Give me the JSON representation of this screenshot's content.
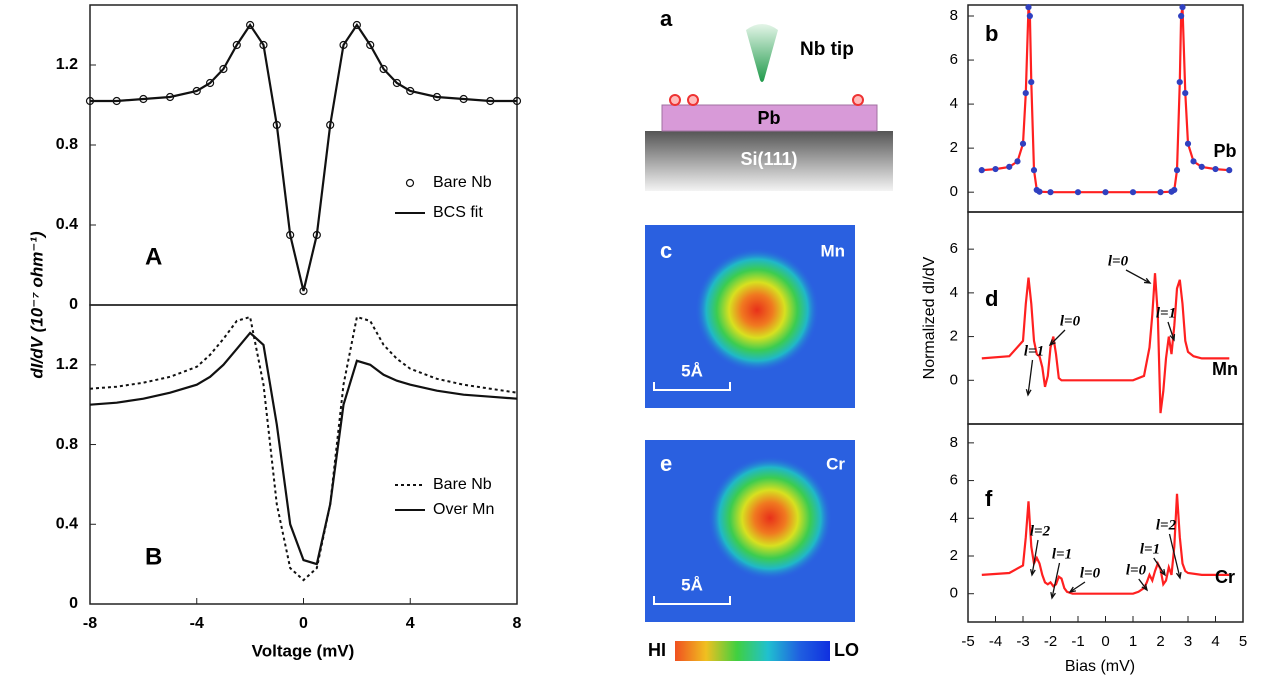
{
  "chart_data": [
    {
      "type": "line",
      "label": "A",
      "ylabel": "dI/dV (10⁻⁷ ohm⁻¹)",
      "x": [
        -8,
        -7,
        -6,
        -5,
        -4,
        -3.5,
        -3,
        -2.5,
        -2,
        -1.5,
        -1,
        -0.5,
        0,
        0.5,
        1,
        1.5,
        2,
        2.5,
        3,
        3.5,
        4,
        5,
        6,
        7,
        8
      ],
      "series": [
        {
          "name": "Bare Nb",
          "style": "circles",
          "color": "#111111",
          "values": [
            1.02,
            1.02,
            1.03,
            1.04,
            1.07,
            1.11,
            1.18,
            1.3,
            1.4,
            1.3,
            0.9,
            0.35,
            0.07,
            0.35,
            0.9,
            1.3,
            1.4,
            1.3,
            1.18,
            1.11,
            1.07,
            1.04,
            1.03,
            1.02,
            1.02
          ]
        },
        {
          "name": "BCS fit",
          "style": "line",
          "color": "#111111",
          "values": [
            1.02,
            1.02,
            1.03,
            1.04,
            1.07,
            1.11,
            1.18,
            1.3,
            1.4,
            1.3,
            0.9,
            0.35,
            0.07,
            0.35,
            0.9,
            1.3,
            1.4,
            1.3,
            1.18,
            1.11,
            1.07,
            1.04,
            1.03,
            1.02,
            1.02
          ]
        }
      ],
      "xlim": [
        -8,
        8
      ],
      "ylim": [
        0,
        1.5
      ],
      "yticks": [
        0,
        0.4,
        0.8,
        1.2
      ]
    },
    {
      "type": "line",
      "label": "B",
      "xlabel": "Voltage (mV)",
      "x": [
        -8,
        -7,
        -6,
        -5,
        -4,
        -3.5,
        -3,
        -2.5,
        -2,
        -1.5,
        -1,
        -0.5,
        0,
        0.5,
        1,
        1.5,
        2,
        2.5,
        3,
        3.5,
        4,
        5,
        6,
        7,
        8
      ],
      "series": [
        {
          "name": "Bare Nb",
          "style": "dotted",
          "color": "#111111",
          "values": [
            1.08,
            1.09,
            1.11,
            1.14,
            1.19,
            1.25,
            1.33,
            1.42,
            1.44,
            1.1,
            0.5,
            0.18,
            0.12,
            0.18,
            0.5,
            1.1,
            1.44,
            1.42,
            1.3,
            1.23,
            1.18,
            1.13,
            1.1,
            1.08,
            1.06
          ]
        },
        {
          "name": "Over Mn",
          "style": "line",
          "color": "#111111",
          "values": [
            1.0,
            1.01,
            1.03,
            1.06,
            1.1,
            1.14,
            1.2,
            1.28,
            1.36,
            1.3,
            0.9,
            0.4,
            0.22,
            0.2,
            0.5,
            1.0,
            1.22,
            1.2,
            1.15,
            1.12,
            1.1,
            1.07,
            1.05,
            1.04,
            1.03
          ]
        }
      ],
      "xlim": [
        -8,
        8
      ],
      "ylim": [
        0,
        1.5
      ],
      "xticks": [
        -8,
        -4,
        0,
        4,
        8
      ],
      "yticks": [
        0,
        0.4,
        0.8,
        1.2
      ]
    },
    {
      "type": "line",
      "label": "b",
      "tag": "Pb",
      "x": [
        -4.5,
        -4,
        -3.5,
        -3.2,
        -3,
        -2.9,
        -2.8,
        -2.75,
        -2.7,
        -2.6,
        -2.5,
        -2.4,
        -2,
        -1,
        0,
        1,
        2,
        2.4,
        2.5,
        2.6,
        2.7,
        2.75,
        2.8,
        2.9,
        3,
        3.2,
        3.5,
        4,
        4.5
      ],
      "series": [
        {
          "style": "line",
          "color": "#ff2020",
          "values": [
            1,
            1.05,
            1.15,
            1.4,
            2.2,
            4.5,
            8.4,
            8.0,
            5,
            1,
            0.1,
            0.02,
            0,
            0,
            0,
            0,
            0,
            0.02,
            0.1,
            1,
            5,
            8.0,
            8.4,
            4.5,
            2.2,
            1.4,
            1.15,
            1.05,
            1
          ]
        },
        {
          "style": "dots",
          "color": "#3040c0",
          "values": [
            1,
            1.05,
            1.15,
            1.4,
            2.2,
            4.5,
            8.4,
            8.0,
            5,
            1,
            0.1,
            0.02,
            0,
            0,
            0,
            0,
            0,
            0.02,
            0.1,
            1,
            5,
            8.0,
            8.4,
            4.5,
            2.2,
            1.4,
            1.15,
            1.05,
            1
          ]
        }
      ],
      "xlim": [
        -5,
        5
      ],
      "ylim": [
        -0.9,
        8.5
      ],
      "yticks": [
        0,
        2,
        4,
        6,
        8
      ]
    },
    {
      "type": "line",
      "label": "d",
      "tag": "Mn",
      "ylabel": "Normalized dI/dV",
      "annotations": [
        "l=1",
        "l=0",
        "l=0",
        "l=1"
      ],
      "x": [
        -4.5,
        -3.5,
        -3,
        -2.9,
        -2.8,
        -2.7,
        -2.6,
        -2.5,
        -2.4,
        -2.3,
        -2.2,
        -2.1,
        -2,
        -1.9,
        -1.8,
        -1.7,
        -1.6,
        -1.5,
        -1,
        0,
        1,
        1.4,
        1.6,
        1.7,
        1.8,
        1.9,
        2,
        2.1,
        2.2,
        2.3,
        2.4,
        2.5,
        2.6,
        2.7,
        2.8,
        2.9,
        3,
        3.2,
        3.5,
        4.5
      ],
      "series": [
        {
          "style": "line",
          "color": "#ff2020",
          "values": [
            1,
            1.1,
            1.8,
            3.5,
            4.7,
            3.5,
            1.8,
            1.2,
            1.1,
            0.6,
            -0.3,
            0.2,
            1.5,
            2.0,
            1.2,
            0.1,
            0,
            0,
            0,
            0,
            0,
            0.2,
            1.5,
            3,
            4.9,
            3,
            -1.5,
            -0.5,
            1,
            2.0,
            1.2,
            2.5,
            4.2,
            4.6,
            3.5,
            1.8,
            1.3,
            1.1,
            1,
            1
          ]
        }
      ],
      "xlim": [
        -5,
        5
      ],
      "ylim": [
        -2,
        7.7
      ],
      "yticks": [
        0,
        2,
        4,
        6
      ]
    },
    {
      "type": "line",
      "label": "f",
      "tag": "Cr",
      "xlabel": "Bias (mV)",
      "annotations": [
        "l=2",
        "l=1",
        "l=0",
        "l=0",
        "l=1",
        "l=2"
      ],
      "x": [
        -4.5,
        -3.5,
        -3,
        -2.9,
        -2.8,
        -2.7,
        -2.6,
        -2.5,
        -2.4,
        -2.3,
        -2.2,
        -2.1,
        -2,
        -1.9,
        -1.8,
        -1.7,
        -1.6,
        -1.5,
        -1.4,
        -1.2,
        -1,
        0,
        1,
        1.2,
        1.4,
        1.5,
        1.6,
        1.7,
        1.8,
        1.9,
        2,
        2.1,
        2.2,
        2.3,
        2.4,
        2.5,
        2.6,
        2.7,
        2.8,
        2.9,
        3,
        3.5,
        4.5
      ],
      "series": [
        {
          "style": "line",
          "color": "#ff2020",
          "values": [
            1,
            1.1,
            1.5,
            3,
            4.9,
            2.5,
            1.6,
            1.9,
            1.6,
            1,
            0.6,
            0.5,
            0.6,
            0.4,
            0.5,
            0.9,
            0.8,
            0.3,
            0.1,
            0,
            0,
            0,
            0,
            0.1,
            0.3,
            0.6,
            1.0,
            0.7,
            1.2,
            1.6,
            1.3,
            0.5,
            0.7,
            1.4,
            1.0,
            2.5,
            5.3,
            3,
            1.6,
            1.2,
            1.1,
            1,
            1
          ]
        }
      ],
      "xlim": [
        -5,
        5
      ],
      "ylim": [
        -1.5,
        9
      ],
      "xticks": [
        -5,
        -4,
        -3,
        -2,
        -1,
        0,
        1,
        2,
        3,
        4,
        5
      ],
      "yticks": [
        0,
        2,
        4,
        6,
        8
      ]
    }
  ],
  "schematic": {
    "label": "a",
    "tip": "Nb tip",
    "film": "Pb",
    "substrate": "Si(111)"
  },
  "images": [
    {
      "label": "c",
      "element": "Mn",
      "scale": "5Å"
    },
    {
      "label": "e",
      "element": "Cr",
      "scale": "5Å"
    }
  ],
  "colorbar": {
    "high": "HI",
    "low": "LO"
  }
}
